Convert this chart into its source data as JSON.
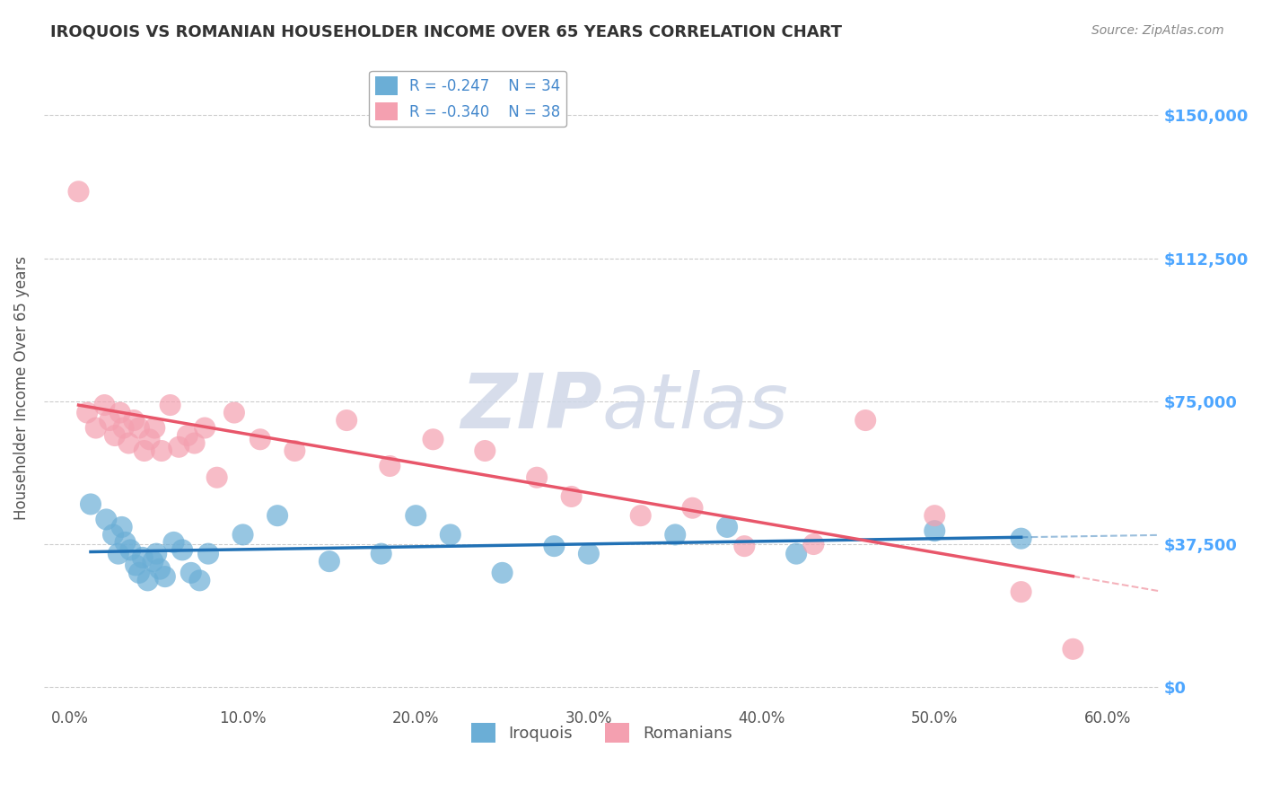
{
  "title": "IROQUOIS VS ROMANIAN HOUSEHOLDER INCOME OVER 65 YEARS CORRELATION CHART",
  "source": "Source: ZipAtlas.com",
  "ylabel": "Householder Income Over 65 years",
  "xlabel_ticks": [
    "0.0%",
    "10.0%",
    "20.0%",
    "30.0%",
    "40.0%",
    "50.0%",
    "60.0%"
  ],
  "xlabel_vals": [
    0.0,
    10.0,
    20.0,
    30.0,
    40.0,
    50.0,
    60.0
  ],
  "ytick_labels": [
    "$0",
    "$37,500",
    "$75,000",
    "$112,500",
    "$150,000"
  ],
  "ytick_vals": [
    0,
    37500,
    75000,
    112500,
    150000
  ],
  "xlim": [
    -1.5,
    63
  ],
  "ylim": [
    -5000,
    162000
  ],
  "iroquois_R": -0.247,
  "iroquois_N": 34,
  "romanians_R": -0.34,
  "romanians_N": 38,
  "iroquois_color": "#6baed6",
  "romanians_color": "#f4a0b0",
  "iroquois_line_color": "#2171b5",
  "romanians_line_color": "#e8566a",
  "watermark_zip": "ZIP",
  "watermark_atlas": "atlas",
  "watermark_color": "#d0d8e8",
  "background_color": "#ffffff",
  "grid_color": "#cccccc",
  "title_color": "#333333",
  "axis_label_color": "#555555",
  "ytick_color": "#4da6ff",
  "iroquois_x": [
    1.2,
    2.1,
    2.5,
    2.8,
    3.0,
    3.2,
    3.5,
    3.8,
    4.0,
    4.2,
    4.5,
    4.8,
    5.0,
    5.2,
    5.5,
    6.0,
    6.5,
    7.0,
    7.5,
    8.0,
    10.0,
    12.0,
    15.0,
    18.0,
    20.0,
    22.0,
    25.0,
    28.0,
    30.0,
    35.0,
    38.0,
    42.0,
    50.0,
    55.0
  ],
  "iroquois_y": [
    48000,
    44000,
    40000,
    35000,
    42000,
    38000,
    36000,
    32000,
    30000,
    34000,
    28000,
    33000,
    35000,
    31000,
    29000,
    38000,
    36000,
    30000,
    28000,
    35000,
    40000,
    45000,
    33000,
    35000,
    45000,
    40000,
    30000,
    37000,
    35000,
    40000,
    42000,
    35000,
    41000,
    39000
  ],
  "romanians_x": [
    0.5,
    1.0,
    1.5,
    2.0,
    2.3,
    2.6,
    2.9,
    3.1,
    3.4,
    3.7,
    4.0,
    4.3,
    4.6,
    4.9,
    5.3,
    5.8,
    6.3,
    6.8,
    7.2,
    7.8,
    8.5,
    9.5,
    11.0,
    13.0,
    16.0,
    18.5,
    21.0,
    24.0,
    27.0,
    29.0,
    33.0,
    36.0,
    39.0,
    43.0,
    46.0,
    50.0,
    55.0,
    58.0
  ],
  "romanians_y": [
    130000,
    72000,
    68000,
    74000,
    70000,
    66000,
    72000,
    68000,
    64000,
    70000,
    68000,
    62000,
    65000,
    68000,
    62000,
    74000,
    63000,
    66000,
    64000,
    68000,
    55000,
    72000,
    65000,
    62000,
    70000,
    58000,
    65000,
    62000,
    55000,
    50000,
    45000,
    47000,
    37000,
    37500,
    70000,
    45000,
    25000,
    10000
  ]
}
